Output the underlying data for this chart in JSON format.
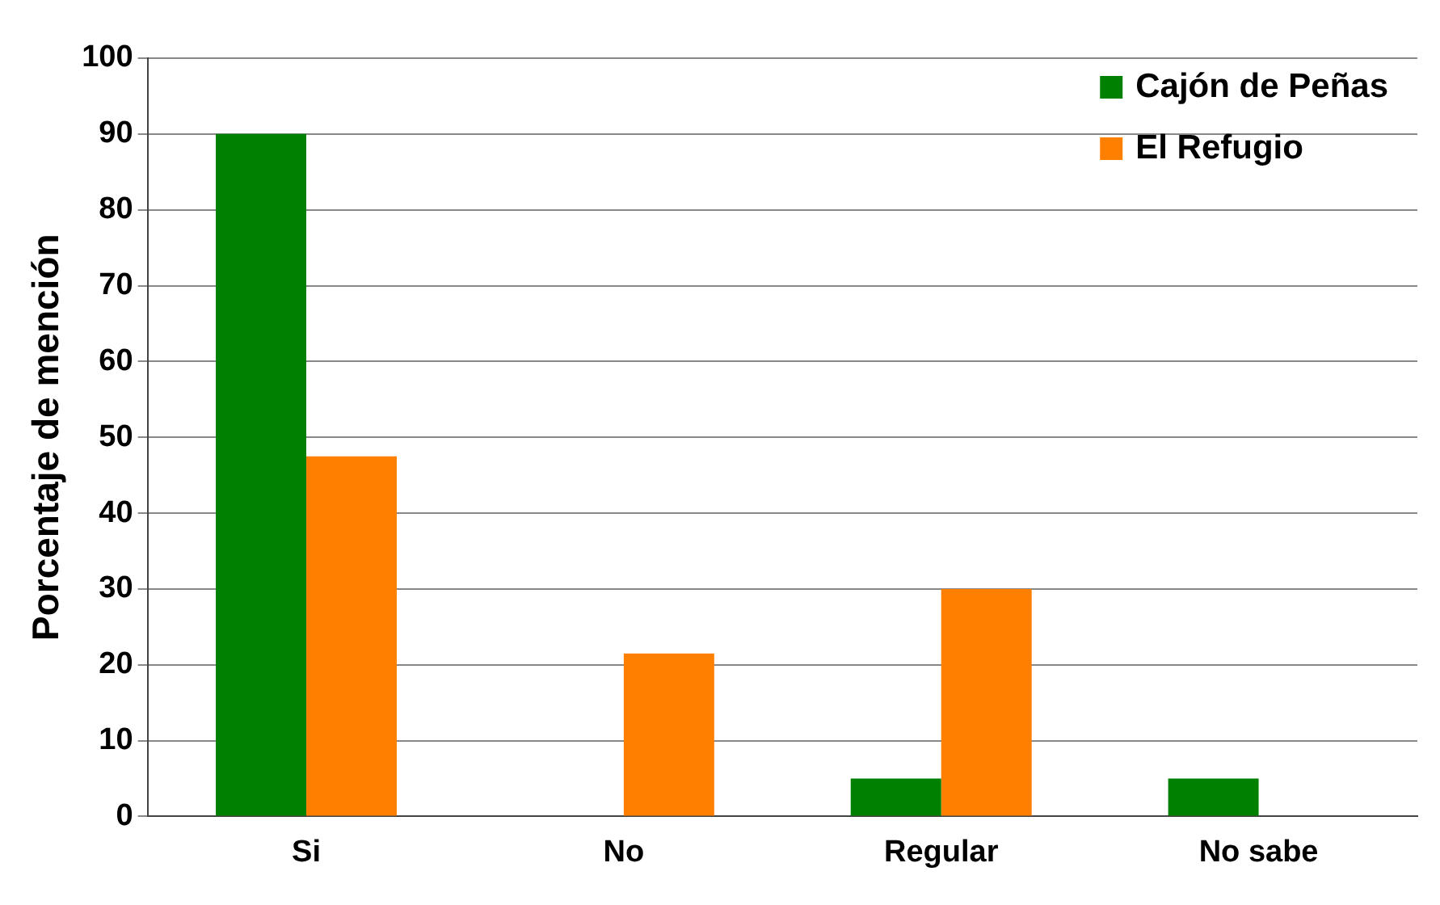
{
  "chart_data": {
    "type": "bar",
    "ylabel": "Porcentaje de mención",
    "categories": [
      "Si",
      "No",
      "Regular",
      "No sabe"
    ],
    "series": [
      {
        "name": "Cajón de Peñas",
        "color": "#008000",
        "values": [
          90,
          0,
          5,
          5
        ]
      },
      {
        "name": "El Refugio",
        "color": "#ff7f00",
        "values": [
          47.5,
          21.5,
          30,
          0
        ]
      }
    ],
    "ylim": [
      0,
      100
    ],
    "yticks": [
      0,
      10,
      20,
      30,
      40,
      50,
      60,
      70,
      80,
      90,
      100
    ],
    "grid": "y",
    "legend": "top right"
  }
}
